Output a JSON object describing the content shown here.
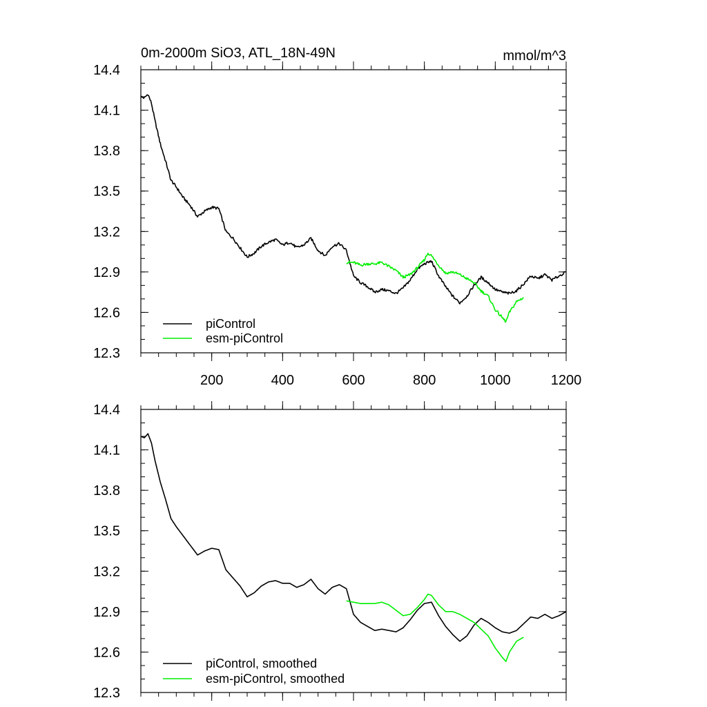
{
  "chart_data": [
    {
      "type": "line",
      "title": "0m-2000m SiO3, ATL_18N-49N",
      "units": "mmol/m^3",
      "xlabel": "",
      "ylabel": "",
      "xlim": [
        0,
        1200
      ],
      "ylim": [
        12.3,
        14.4
      ],
      "xticks": [
        200,
        400,
        600,
        800,
        1000,
        1200
      ],
      "xtick_labels": [
        "200",
        "400",
        "600",
        "800",
        "1000",
        "1200"
      ],
      "yticks": [
        12.3,
        12.6,
        12.9,
        13.2,
        13.5,
        13.8,
        14.1,
        14.4
      ],
      "ytick_labels": [
        "12.3",
        "12.6",
        "12.9",
        "13.2",
        "13.5",
        "13.8",
        "14.1",
        "14.4"
      ],
      "legend": "bottom-left",
      "series": [
        {
          "name": "piControl",
          "color": "#000000",
          "x": [
            0,
            10,
            20,
            30,
            40,
            55,
            70,
            85,
            100,
            120,
            140,
            160,
            180,
            200,
            220,
            240,
            260,
            280,
            300,
            320,
            340,
            360,
            380,
            400,
            420,
            440,
            460,
            480,
            500,
            520,
            540,
            560,
            580,
            600,
            620,
            640,
            660,
            680,
            700,
            720,
            740,
            760,
            780,
            800,
            820,
            840,
            860,
            880,
            900,
            920,
            940,
            960,
            980,
            1000,
            1020,
            1040,
            1060,
            1080,
            1100,
            1120,
            1140,
            1160,
            1180,
            1200
          ],
          "y": [
            14.2,
            14.19,
            14.22,
            14.15,
            14.02,
            13.85,
            13.72,
            13.58,
            13.53,
            13.45,
            13.39,
            13.31,
            13.35,
            13.38,
            13.37,
            13.2,
            13.15,
            13.08,
            13.01,
            13.04,
            13.09,
            13.12,
            13.14,
            13.1,
            13.12,
            13.08,
            13.1,
            13.15,
            13.06,
            13.02,
            13.09,
            13.11,
            13.06,
            12.87,
            12.82,
            12.79,
            12.75,
            12.77,
            12.76,
            12.74,
            12.78,
            12.84,
            12.92,
            12.96,
            12.98,
            12.87,
            12.79,
            12.72,
            12.67,
            12.72,
            12.8,
            12.86,
            12.82,
            12.77,
            12.75,
            12.74,
            12.76,
            12.81,
            12.87,
            12.85,
            12.88,
            12.84,
            12.87,
            12.9
          ]
        },
        {
          "name": "esm-piControl",
          "color": "#00ee00",
          "x": [
            580,
            600,
            620,
            640,
            660,
            680,
            700,
            720,
            740,
            760,
            780,
            800,
            810,
            820,
            840,
            860,
            880,
            900,
            920,
            940,
            960,
            980,
            1000,
            1020,
            1030,
            1040,
            1060,
            1080
          ],
          "y": [
            12.97,
            12.97,
            12.95,
            12.96,
            12.96,
            12.97,
            12.94,
            12.91,
            12.86,
            12.88,
            12.93,
            12.99,
            13.04,
            13.02,
            12.95,
            12.89,
            12.9,
            12.88,
            12.85,
            12.82,
            12.76,
            12.72,
            12.62,
            12.56,
            12.53,
            12.6,
            12.68,
            12.71
          ]
        }
      ]
    },
    {
      "type": "line",
      "title": "",
      "units": "",
      "xlabel": "",
      "ylabel": "",
      "xlim": [
        0,
        1200
      ],
      "ylim": [
        12.3,
        14.4
      ],
      "xticks": [
        200,
        400,
        600,
        800,
        1000,
        1200
      ],
      "xtick_labels": [],
      "yticks": [
        12.3,
        12.6,
        12.9,
        13.2,
        13.5,
        13.8,
        14.1,
        14.4
      ],
      "ytick_labels": [
        "12.3",
        "12.6",
        "12.9",
        "13.2",
        "13.5",
        "13.8",
        "14.1",
        "14.4"
      ],
      "legend": "bottom-left",
      "series": [
        {
          "name": "piControl, smoothed",
          "color": "#000000",
          "x": [
            0,
            10,
            20,
            30,
            40,
            55,
            70,
            85,
            100,
            120,
            140,
            160,
            180,
            200,
            220,
            240,
            260,
            280,
            300,
            320,
            340,
            360,
            380,
            400,
            420,
            440,
            460,
            480,
            500,
            520,
            540,
            560,
            580,
            600,
            620,
            640,
            660,
            680,
            700,
            720,
            740,
            760,
            780,
            800,
            820,
            840,
            860,
            880,
            900,
            920,
            940,
            960,
            980,
            1000,
            1020,
            1040,
            1060,
            1080,
            1100,
            1120,
            1140,
            1160,
            1180,
            1200
          ],
          "y": [
            14.2,
            14.19,
            14.22,
            14.15,
            14.02,
            13.86,
            13.73,
            13.59,
            13.53,
            13.46,
            13.39,
            13.32,
            13.35,
            13.37,
            13.36,
            13.21,
            13.15,
            13.09,
            13.01,
            13.04,
            13.09,
            13.12,
            13.13,
            13.11,
            13.11,
            13.08,
            13.1,
            13.14,
            13.07,
            13.03,
            13.08,
            13.1,
            13.07,
            12.88,
            12.82,
            12.79,
            12.76,
            12.77,
            12.76,
            12.75,
            12.78,
            12.84,
            12.91,
            12.96,
            12.97,
            12.87,
            12.79,
            12.73,
            12.68,
            12.72,
            12.8,
            12.85,
            12.82,
            12.78,
            12.75,
            12.74,
            12.76,
            12.81,
            12.86,
            12.85,
            12.88,
            12.85,
            12.87,
            12.9
          ]
        },
        {
          "name": "esm-piControl, smoothed",
          "color": "#00ee00",
          "x": [
            580,
            600,
            620,
            640,
            660,
            680,
            700,
            720,
            740,
            760,
            780,
            800,
            810,
            820,
            840,
            860,
            880,
            900,
            920,
            940,
            960,
            980,
            1000,
            1020,
            1030,
            1040,
            1060,
            1080
          ],
          "y": [
            12.98,
            12.97,
            12.96,
            12.96,
            12.96,
            12.97,
            12.95,
            12.91,
            12.87,
            12.88,
            12.93,
            12.99,
            13.03,
            13.02,
            12.95,
            12.9,
            12.9,
            12.88,
            12.85,
            12.82,
            12.77,
            12.72,
            12.63,
            12.56,
            12.53,
            12.6,
            12.68,
            12.71
          ]
        }
      ]
    }
  ]
}
